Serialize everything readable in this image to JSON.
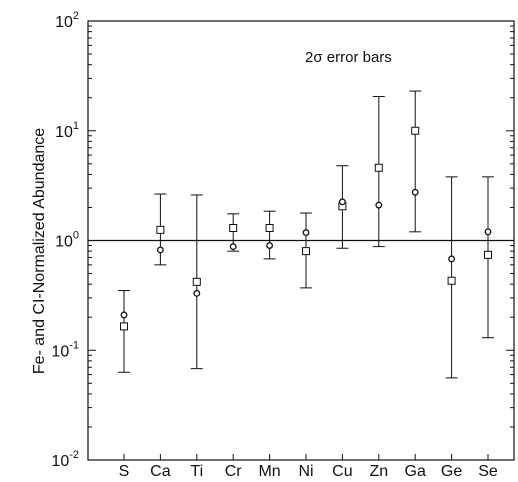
{
  "chart_data": {
    "type": "scatter",
    "title": "",
    "annotation": "2σ error bars",
    "xlabel": "",
    "ylabel": "Fe- and CI-Normalized Abundance",
    "yscale": "log",
    "ylim": [
      0.01,
      100
    ],
    "grid": false,
    "reference_line": 1.0,
    "y_ticks": [
      {
        "base": "10",
        "exp": "2",
        "value": 100
      },
      {
        "base": "10",
        "exp": "1",
        "value": 10
      },
      {
        "base": "10",
        "exp": "0",
        "value": 1
      },
      {
        "base": "10",
        "exp": "-1",
        "value": 0.1
      },
      {
        "base": "10",
        "exp": "-2",
        "value": 0.01
      }
    ],
    "categories": [
      "S",
      "Ca",
      "Ti",
      "Cr",
      "Mn",
      "Ni",
      "Cu",
      "Zn",
      "Ga",
      "Ge",
      "Se"
    ],
    "series": [
      {
        "marker": "square",
        "values": [
          0.165,
          1.25,
          0.42,
          1.3,
          1.3,
          0.8,
          2.05,
          4.6,
          10.0,
          0.43,
          0.74
        ],
        "err_low": [
          0.063,
          0.6,
          0.068,
          0.8,
          0.68,
          0.37,
          0.85,
          0.88,
          1.2,
          0.056,
          0.13
        ],
        "err_high": [
          0.35,
          2.65,
          2.6,
          1.75,
          1.85,
          1.78,
          4.8,
          20.5,
          23.0,
          3.8,
          3.8
        ]
      },
      {
        "marker": "circle",
        "values": [
          0.21,
          0.82,
          0.33,
          0.88,
          0.9,
          1.18,
          2.25,
          2.1,
          2.75,
          0.68,
          1.2
        ],
        "err_low": null,
        "err_high": null
      }
    ]
  }
}
